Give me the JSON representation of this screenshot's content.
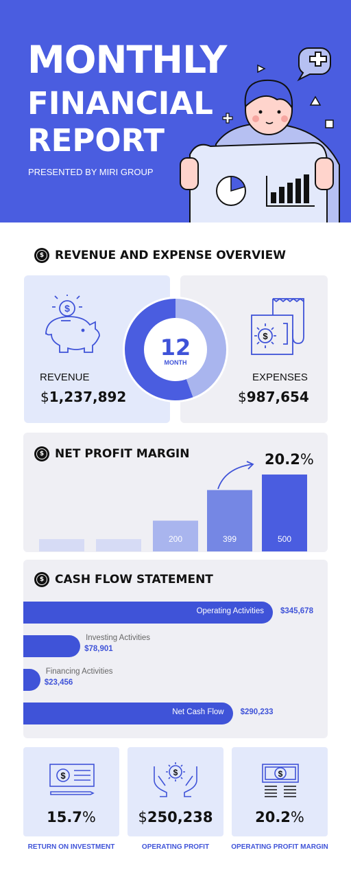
{
  "header": {
    "title_line1": "MONTHLY",
    "title_line2": "FINANCIAL",
    "title_line3": "REPORT",
    "presented_by": "PRESENTED BY MIRI GROUP"
  },
  "overview": {
    "heading": "REVENUE AND EXPENSE OVERVIEW",
    "donut_number": "12",
    "donut_unit": "MONTH",
    "revenue_label": "REVENUE",
    "revenue_currency": "$",
    "revenue_value": "1,237,892",
    "expenses_label": "EXPENSES",
    "expenses_currency": "$",
    "expenses_value": "987,654"
  },
  "net_profit": {
    "heading": "NET PROFIT MARGIN",
    "margin_value": "20.2",
    "margin_unit": "%"
  },
  "cash_flow": {
    "heading": "CASH FLOW STATEMENT"
  },
  "kpis": [
    {
      "value": "15.7",
      "prefix": "",
      "suffix": "%",
      "caption": "RETURN ON INVESTMENT"
    },
    {
      "value": "250,238",
      "prefix": "$",
      "suffix": "",
      "caption": "OPERATING PROFIT"
    },
    {
      "value": "20.2",
      "prefix": "",
      "suffix": "%",
      "caption": "OPERATING PROFIT MARGIN"
    }
  ],
  "chart_data": [
    {
      "type": "pie",
      "categories": [
        "Revenue",
        "Expenses"
      ],
      "values": [
        1237892,
        987654
      ],
      "colors": [
        "#4a5de0",
        "#a9b5ee"
      ]
    },
    {
      "type": "bar",
      "categories": [
        "",
        "",
        "",
        "",
        ""
      ],
      "values": [
        80,
        80,
        200,
        399,
        500
      ],
      "labels": [
        "",
        "",
        "200",
        "399",
        "500"
      ],
      "colors": [
        "#d6dbf5",
        "#d6dbf5",
        "#a9b5ee",
        "#7587e4",
        "#4a5de0"
      ],
      "ylim": [
        0,
        500
      ]
    },
    {
      "type": "bar",
      "orientation": "horizontal",
      "categories": [
        "Operating Activities",
        "Investing Activities",
        "Financing Activities",
        "Net Cash Flow"
      ],
      "values": [
        345678,
        78901,
        23456,
        290233
      ],
      "value_labels": [
        "$345,678",
        "$78,901",
        "$23,456",
        "$290,233"
      ],
      "color": "#3f53d8"
    }
  ],
  "colors": {
    "accent": "#4a5de0",
    "card_blue": "#e3e9fb",
    "card_gray": "#efeff4"
  }
}
